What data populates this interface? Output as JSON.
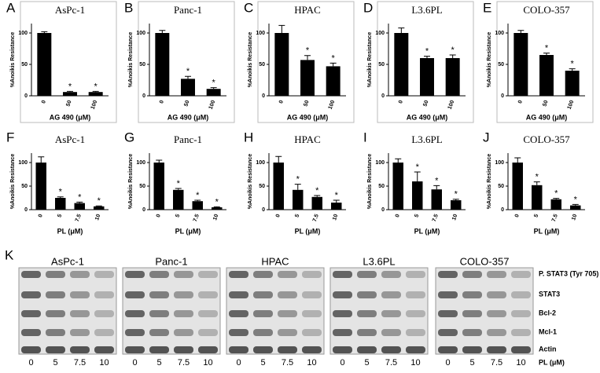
{
  "chart_data": [
    {
      "type": "bar",
      "panel": "A",
      "title": "AsPc-1",
      "y_label": "%Anoikis Resistance",
      "x_label": "AG 490 (μM)",
      "categories": [
        "0",
        "50",
        "100"
      ],
      "values": [
        100,
        6,
        6
      ],
      "errors": [
        2,
        1,
        1
      ],
      "markers": [
        null,
        "*",
        "*"
      ],
      "color": "#000000",
      "ylim": [
        0,
        115
      ],
      "yticks": [
        0,
        50,
        100
      ]
    },
    {
      "type": "bar",
      "panel": "B",
      "title": "Panc-1",
      "y_label": "%Anoikis Resistance",
      "x_label": "AG 490 (μM)",
      "categories": [
        "0",
        "50",
        "100"
      ],
      "values": [
        100,
        27,
        11
      ],
      "errors": [
        4,
        4,
        2
      ],
      "markers": [
        null,
        "*",
        "*"
      ],
      "color": "#000000",
      "ylim": [
        0,
        115
      ],
      "yticks": [
        0,
        50,
        100
      ]
    },
    {
      "type": "bar",
      "panel": "C",
      "title": "HPAC",
      "y_label": "%Anoikis Resistance",
      "x_label": "AG 490 (μM)",
      "categories": [
        "0",
        "50",
        "100"
      ],
      "values": [
        100,
        57,
        47
      ],
      "errors": [
        12,
        7,
        5
      ],
      "markers": [
        null,
        "*",
        "*"
      ],
      "color": "#000000",
      "ylim": [
        0,
        115
      ],
      "yticks": [
        0,
        50,
        100
      ]
    },
    {
      "type": "bar",
      "panel": "D",
      "title": "L3.6PL",
      "y_label": "%Anoikis Resistance",
      "x_label": "AG 490 (μM)",
      "categories": [
        "0",
        "50",
        "100"
      ],
      "values": [
        100,
        60,
        60
      ],
      "errors": [
        8,
        3,
        5
      ],
      "markers": [
        null,
        "*",
        "*"
      ],
      "color": "#000000",
      "ylim": [
        0,
        115
      ],
      "yticks": [
        0,
        50,
        100
      ]
    },
    {
      "type": "bar",
      "panel": "E",
      "title": "COLO-357",
      "y_label": "%Anoikis Resistance",
      "x_label": "AG 490 (μM)",
      "categories": [
        "0",
        "50",
        "100"
      ],
      "values": [
        100,
        65,
        40
      ],
      "errors": [
        4,
        3,
        3
      ],
      "markers": [
        null,
        "*",
        "*"
      ],
      "color": "#000000",
      "ylim": [
        0,
        115
      ],
      "yticks": [
        0,
        50,
        100
      ]
    },
    {
      "type": "bar",
      "panel": "F",
      "title": "AsPc-1",
      "y_label": "%Anoikis Resistance",
      "x_label": "PL (μM)",
      "categories": [
        "0",
        "5",
        "7.5",
        "10"
      ],
      "values": [
        100,
        25,
        14,
        7
      ],
      "errors": [
        12,
        2,
        2,
        1
      ],
      "markers": [
        null,
        "*",
        "*",
        "*"
      ],
      "color": "#000000",
      "ylim": [
        0,
        120
      ],
      "yticks": [
        0,
        50,
        100
      ]
    },
    {
      "type": "bar",
      "panel": "G",
      "title": "Panc-1",
      "y_label": "%Anoikis Resistance",
      "x_label": "PL (μM)",
      "categories": [
        "0",
        "5",
        "7.5",
        "10"
      ],
      "values": [
        100,
        42,
        18,
        5
      ],
      "errors": [
        5,
        3,
        2,
        1
      ],
      "markers": [
        null,
        "*",
        "*",
        "*"
      ],
      "color": "#000000",
      "ylim": [
        0,
        120
      ],
      "yticks": [
        0,
        50,
        100
      ]
    },
    {
      "type": "bar",
      "panel": "H",
      "title": "HPAC",
      "y_label": "%Anoikis Resistance",
      "x_label": "PL (μM)",
      "categories": [
        "0",
        "5",
        "7.5",
        "10"
      ],
      "values": [
        100,
        42,
        27,
        15
      ],
      "errors": [
        13,
        12,
        3,
        5
      ],
      "markers": [
        null,
        "*",
        "*",
        "*"
      ],
      "color": "#000000",
      "ylim": [
        0,
        120
      ],
      "yticks": [
        0,
        50,
        100
      ]
    },
    {
      "type": "bar",
      "panel": "I",
      "title": "L3.6PL",
      "y_label": "%Anoikis Resistance",
      "x_label": "PL (μM)",
      "categories": [
        "0",
        "5",
        "7.5",
        "10"
      ],
      "values": [
        100,
        60,
        43,
        20
      ],
      "errors": [
        8,
        20,
        8,
        2
      ],
      "markers": [
        null,
        "*",
        "*",
        "*"
      ],
      "color": "#000000",
      "ylim": [
        0,
        120
      ],
      "yticks": [
        0,
        50,
        100
      ]
    },
    {
      "type": "bar",
      "panel": "J",
      "title": "COLO-357",
      "y_label": "%Anoikis Resistance",
      "x_label": "PL (μM)",
      "categories": [
        "0",
        "5",
        "7.5",
        "10"
      ],
      "values": [
        100,
        52,
        22,
        9
      ],
      "errors": [
        10,
        7,
        2,
        2
      ],
      "markers": [
        null,
        "*",
        "*",
        "*"
      ],
      "color": "#000000",
      "ylim": [
        0,
        120
      ],
      "yticks": [
        0,
        50,
        100
      ]
    }
  ],
  "blot": {
    "panel": "K",
    "cell_lines": [
      "AsPc-1",
      "Panc-1",
      "HPAC",
      "L3.6PL",
      "COLO-357"
    ],
    "proteins": [
      "P. STAT3 (Tyr 705)",
      "STAT3",
      "Bcl-2",
      "Mcl-1",
      "Actin"
    ],
    "doses": [
      "0",
      "5",
      "7.5",
      "10"
    ],
    "dose_label": "PL (μM)"
  }
}
